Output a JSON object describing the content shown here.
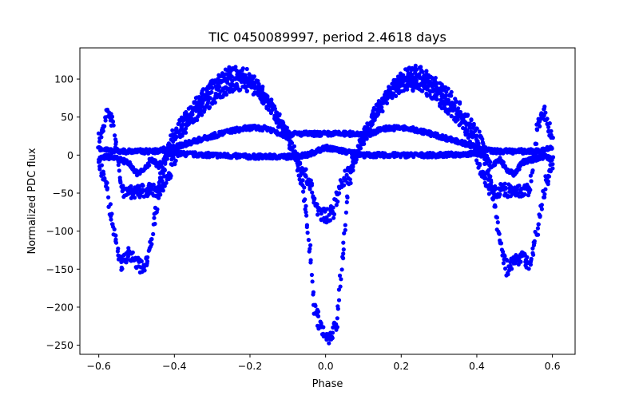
{
  "chart_data": {
    "type": "scatter",
    "title": "TIC 0450089997, period 2.4618 days",
    "xlabel": "Phase",
    "ylabel": "Normalized PDC flux",
    "xlim": [
      -0.65,
      0.66
    ],
    "ylim": [
      -262,
      141
    ],
    "xticks": [
      -0.6,
      -0.4,
      -0.2,
      0.0,
      0.2,
      0.4,
      0.6
    ],
    "xtick_labels": [
      "−0.6",
      "−0.4",
      "−0.2",
      "0.0",
      "0.2",
      "0.4",
      "0.6"
    ],
    "yticks": [
      100,
      50,
      0,
      -50,
      -100,
      -150,
      -200,
      -250
    ],
    "ytick_labels": [
      "100",
      "50",
      "0",
      "−50",
      "−100",
      "−150",
      "−200",
      "−250"
    ],
    "grid": false,
    "color": "#0000ff",
    "x_range": [
      -0.6,
      0.6
    ],
    "series": [
      {
        "values": [
          [
            -0.6,
            -5
          ],
          [
            -0.58,
            -2
          ],
          [
            -0.55,
            -5
          ],
          [
            -0.52,
            -10
          ],
          [
            -0.5,
            -25
          ],
          [
            -0.48,
            -20
          ],
          [
            -0.46,
            -5
          ],
          [
            -0.44,
            -15
          ],
          [
            -0.42,
            0
          ],
          [
            -0.4,
            2
          ],
          [
            -0.3,
            0
          ],
          [
            -0.2,
            -2
          ],
          [
            -0.1,
            -2
          ],
          [
            -0.05,
            0
          ],
          [
            0.0,
            10
          ],
          [
            0.05,
            5
          ],
          [
            0.1,
            0
          ],
          [
            0.2,
            0
          ],
          [
            0.3,
            0
          ],
          [
            0.4,
            2
          ],
          [
            0.42,
            0
          ],
          [
            0.44,
            -15
          ],
          [
            0.46,
            -5
          ],
          [
            0.48,
            -20
          ],
          [
            0.5,
            -25
          ],
          [
            0.52,
            -10
          ],
          [
            0.55,
            -5
          ],
          [
            0.58,
            -2
          ],
          [
            0.6,
            -5
          ]
        ]
      },
      {
        "values": [
          [
            -0.6,
            10
          ],
          [
            -0.57,
            5
          ],
          [
            -0.5,
            5
          ],
          [
            -0.45,
            5
          ],
          [
            -0.4,
            10
          ],
          [
            -0.35,
            18
          ],
          [
            -0.3,
            25
          ],
          [
            -0.25,
            32
          ],
          [
            -0.2,
            36
          ],
          [
            -0.15,
            35
          ],
          [
            -0.12,
            28
          ],
          [
            0.12,
            28
          ],
          [
            0.15,
            35
          ],
          [
            0.2,
            36
          ],
          [
            0.25,
            32
          ],
          [
            0.3,
            25
          ],
          [
            0.35,
            18
          ],
          [
            0.4,
            10
          ],
          [
            0.45,
            5
          ],
          [
            0.5,
            5
          ],
          [
            0.57,
            5
          ],
          [
            0.6,
            10
          ]
        ]
      },
      {
        "values": [
          [
            -0.6,
            20
          ],
          [
            -0.58,
            55
          ],
          [
            -0.56,
            40
          ],
          [
            -0.54,
            -45
          ],
          [
            -0.5,
            -50
          ],
          [
            -0.47,
            -45
          ],
          [
            -0.44,
            -50
          ],
          [
            -0.41,
            -20
          ],
          [
            -0.38,
            30
          ],
          [
            -0.34,
            55
          ],
          [
            -0.3,
            75
          ],
          [
            -0.26,
            90
          ],
          [
            -0.22,
            95
          ],
          [
            -0.18,
            85
          ],
          [
            -0.14,
            60
          ],
          [
            -0.1,
            20
          ],
          [
            -0.06,
            -20
          ],
          [
            -0.04,
            -40
          ],
          [
            -0.02,
            -75
          ],
          [
            0.0,
            -80
          ],
          [
            0.02,
            -75
          ],
          [
            0.04,
            -40
          ],
          [
            0.06,
            -20
          ],
          [
            0.1,
            20
          ],
          [
            0.14,
            60
          ],
          [
            0.18,
            85
          ],
          [
            0.22,
            95
          ],
          [
            0.26,
            90
          ],
          [
            0.3,
            75
          ],
          [
            0.34,
            55
          ],
          [
            0.38,
            30
          ],
          [
            0.41,
            -20
          ],
          [
            0.44,
            -50
          ],
          [
            0.47,
            -45
          ],
          [
            0.5,
            -50
          ],
          [
            0.54,
            -45
          ],
          [
            0.56,
            40
          ],
          [
            0.58,
            55
          ],
          [
            0.6,
            20
          ]
        ]
      },
      {
        "values": [
          [
            -0.6,
            -10
          ],
          [
            -0.58,
            -40
          ],
          [
            -0.56,
            -100
          ],
          [
            -0.54,
            -145
          ],
          [
            -0.52,
            -130
          ],
          [
            -0.5,
            -140
          ],
          [
            -0.48,
            -150
          ],
          [
            -0.46,
            -110
          ],
          [
            -0.44,
            -40
          ],
          [
            -0.41,
            20
          ],
          [
            -0.37,
            50
          ],
          [
            -0.33,
            75
          ],
          [
            -0.29,
            95
          ],
          [
            -0.25,
            110
          ],
          [
            -0.21,
            105
          ],
          [
            -0.17,
            85
          ],
          [
            -0.13,
            55
          ],
          [
            -0.09,
            15
          ],
          [
            -0.06,
            -40
          ],
          [
            -0.04,
            -130
          ],
          [
            -0.03,
            -200
          ],
          [
            -0.01,
            -230
          ],
          [
            0.01,
            -240
          ],
          [
            0.03,
            -220
          ],
          [
            0.04,
            -160
          ],
          [
            0.06,
            -40
          ],
          [
            0.09,
            15
          ],
          [
            0.13,
            55
          ],
          [
            0.17,
            85
          ],
          [
            0.21,
            105
          ],
          [
            0.25,
            110
          ],
          [
            0.29,
            95
          ],
          [
            0.33,
            75
          ],
          [
            0.37,
            50
          ],
          [
            0.41,
            20
          ],
          [
            0.44,
            -40
          ],
          [
            0.46,
            -110
          ],
          [
            0.48,
            -150
          ],
          [
            0.5,
            -140
          ],
          [
            0.52,
            -130
          ],
          [
            0.54,
            -145
          ],
          [
            0.56,
            -100
          ],
          [
            0.58,
            -40
          ],
          [
            0.6,
            -10
          ]
        ]
      }
    ]
  }
}
